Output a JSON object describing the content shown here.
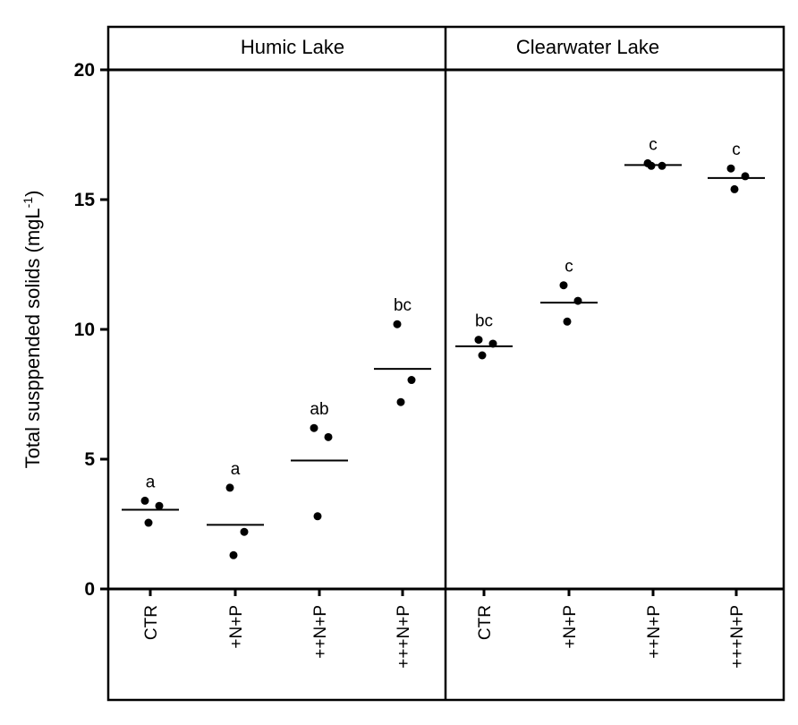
{
  "chart_data": {
    "type": "scatter",
    "ylabel": "Total susppended solids (mgL",
    "ylabel_sup": "-1",
    "ylabel_close": ")",
    "ylim": [
      0,
      20
    ],
    "yticks": [
      "0",
      "5",
      "10",
      "15",
      "20"
    ],
    "grid": false,
    "panels": [
      {
        "title": "Humic Lake",
        "categories": [
          "CTR",
          "+N+P",
          "++N+P",
          "+++N+P"
        ],
        "groups": [
          {
            "points": [
              3.4,
              3.2,
              2.55
            ],
            "mean": 3.05,
            "letter": "a"
          },
          {
            "points": [
              3.9,
              2.2,
              1.3
            ],
            "mean": 2.47,
            "letter": "a"
          },
          {
            "points": [
              6.2,
              5.85,
              2.8
            ],
            "mean": 4.95,
            "letter": "ab"
          },
          {
            "points": [
              10.2,
              8.05,
              7.2
            ],
            "mean": 8.48,
            "letter": "bc"
          }
        ]
      },
      {
        "title": "Clearwater Lake",
        "categories": [
          "CTR",
          "+N+P",
          "++N+P",
          "+++N+P"
        ],
        "groups": [
          {
            "points": [
              9.6,
              9.45,
              9.0
            ],
            "mean": 9.35,
            "letter": "bc"
          },
          {
            "points": [
              11.7,
              11.1,
              10.3
            ],
            "mean": 11.03,
            "letter": "c"
          },
          {
            "points": [
              16.4,
              16.3,
              16.3
            ],
            "mean": 16.33,
            "letter": "c"
          },
          {
            "points": [
              16.2,
              15.9,
              15.4
            ],
            "mean": 15.83,
            "letter": "c"
          }
        ]
      }
    ]
  }
}
